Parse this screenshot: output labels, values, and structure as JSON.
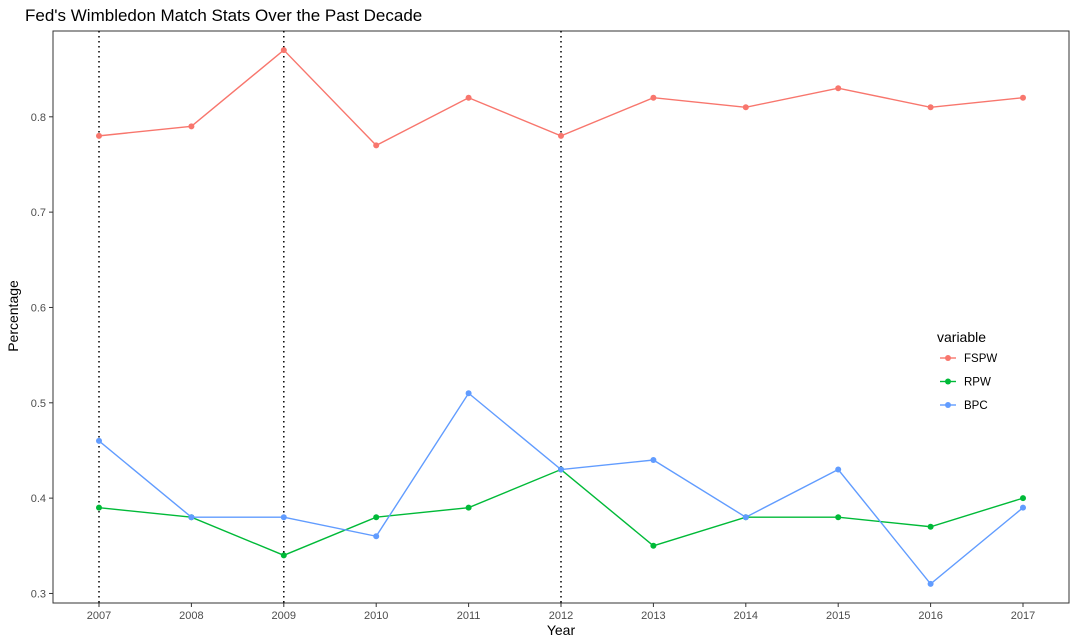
{
  "chart_data": {
    "type": "line",
    "title": "Fed's Wimbledon Match Stats Over the Past Decade",
    "xlabel": "Year",
    "ylabel": "Percentage",
    "x": [
      "2007",
      "2008",
      "2009",
      "2010",
      "2011",
      "2012",
      "2013",
      "2014",
      "2015",
      "2016",
      "2017"
    ],
    "ylim": [
      0.29,
      0.89
    ],
    "y_ticks": [
      "0.3",
      "0.4",
      "0.5",
      "0.6",
      "0.7",
      "0.8"
    ],
    "grid": false,
    "legend": {
      "title": "variable",
      "position": "right"
    },
    "vertical_markers": [
      "2007",
      "2009",
      "2012"
    ],
    "series": [
      {
        "name": "FSPW",
        "color": "#F8766D",
        "values": [
          0.78,
          0.79,
          0.87,
          0.77,
          0.82,
          0.78,
          0.82,
          0.81,
          0.83,
          0.81,
          0.82
        ]
      },
      {
        "name": "RPW",
        "color": "#00BA38",
        "values": [
          0.39,
          0.38,
          0.34,
          0.38,
          0.39,
          0.43,
          0.35,
          0.38,
          0.38,
          0.37,
          0.4
        ]
      },
      {
        "name": "BPC",
        "color": "#619CFF",
        "values": [
          0.46,
          0.38,
          0.38,
          0.36,
          0.51,
          0.43,
          0.44,
          0.38,
          0.43,
          0.31,
          0.39
        ]
      }
    ]
  }
}
